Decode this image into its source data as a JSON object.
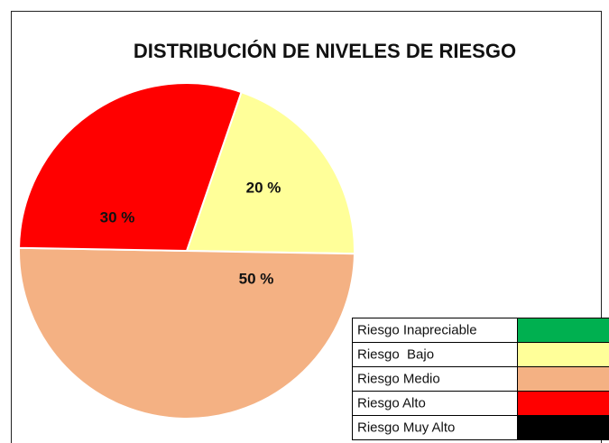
{
  "chart_data": {
    "type": "pie",
    "title": "DISTRIBUCIÓN DE NIVELES DE RIESGO",
    "categories": [
      "Riesgo Inapreciable",
      "Riesgo  Bajo",
      "Riesgo Medio",
      "Riesgo Alto",
      "Riesgo Muy Alto"
    ],
    "values": [
      0,
      20,
      50,
      30,
      0
    ],
    "value_labels": [
      null,
      "20 %",
      "50 %",
      "30 %",
      null
    ],
    "colors": [
      "#00b050",
      "#ffff99",
      "#f4b183",
      "#ff0000",
      "#000000"
    ]
  }
}
